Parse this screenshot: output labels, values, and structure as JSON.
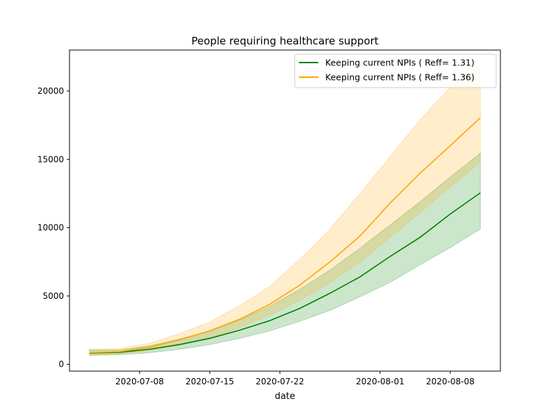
{
  "chart_data": {
    "type": "line",
    "title": "People requiring healthcare support",
    "xlabel": "date",
    "ylabel": "",
    "x_type": "date",
    "xlim": [
      "2020-07-01",
      "2020-08-13"
    ],
    "ylim": [
      -500,
      23000
    ],
    "x_ticks": [
      "2020-07-08",
      "2020-07-15",
      "2020-07-22",
      "2020-08-01",
      "2020-08-08"
    ],
    "y_ticks": [
      0,
      5000,
      10000,
      15000,
      20000
    ],
    "grid": false,
    "legend_position": "top-right",
    "dates": [
      "2020-07-03",
      "2020-07-06",
      "2020-07-09",
      "2020-07-12",
      "2020-07-15",
      "2020-07-18",
      "2020-07-21",
      "2020-07-24",
      "2020-07-27",
      "2020-07-30",
      "2020-08-02",
      "2020-08-05",
      "2020-08-08",
      "2020-08-11"
    ],
    "series": [
      {
        "name": "Keeping current NPIs ( Reff= 1.31)",
        "color": "#008000",
        "band_color": "#008000",
        "values": [
          820,
          880,
          1100,
          1450,
          1900,
          2500,
          3200,
          4100,
          5200,
          6400,
          7900,
          9300,
          11000,
          12550
        ],
        "lower": [
          650,
          700,
          850,
          1100,
          1450,
          1900,
          2450,
          3150,
          3950,
          4950,
          6000,
          7300,
          8550,
          9900
        ],
        "upper": [
          1050,
          1050,
          1350,
          1850,
          2450,
          3250,
          4250,
          5500,
          6900,
          8500,
          10200,
          11900,
          13700,
          15450
        ]
      },
      {
        "name": "Keeping current NPIs ( Reff= 1.36)",
        "color": "#ffa500",
        "band_color": "#ffa500",
        "values": [
          850,
          920,
          1250,
          1800,
          2450,
          3300,
          4400,
          5800,
          7500,
          9400,
          11800,
          14000,
          16000,
          18050
        ],
        "lower": [
          700,
          760,
          1000,
          1400,
          1950,
          2700,
          3600,
          4700,
          6000,
          7500,
          9300,
          11100,
          13000,
          14800
        ],
        "upper": [
          1100,
          1150,
          1550,
          2250,
          3100,
          4300,
          5700,
          7700,
          9900,
          12500,
          15200,
          17900,
          20300,
          21700
        ]
      }
    ]
  }
}
